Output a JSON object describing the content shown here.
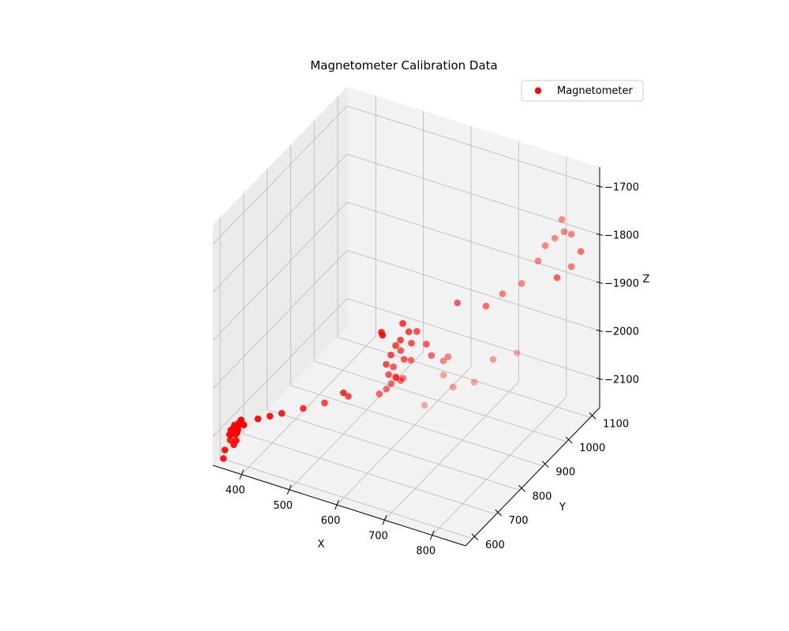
{
  "chart_data": {
    "type": "scatter3d",
    "title": "Magnetometer Calibration Data",
    "xlabel": "X",
    "ylabel": "Y",
    "zlabel": "Z",
    "xlim": [
      340,
      870
    ],
    "ylim": [
      570,
      1140
    ],
    "zlim": [
      -2160,
      -1660
    ],
    "xticks": [
      400,
      500,
      600,
      700,
      800
    ],
    "yticks": [
      600,
      700,
      800,
      900,
      1000,
      1100
    ],
    "zticks": [
      -2100,
      -2000,
      -1900,
      -1800,
      -1700
    ],
    "xtick_labels": [
      "400",
      "500",
      "600",
      "700",
      "800"
    ],
    "ytick_labels": [
      "600",
      "700",
      "800",
      "900",
      "1000",
      "1100"
    ],
    "ztick_labels": [
      "−2100",
      "−2000",
      "−1900",
      "−1800",
      "−1700"
    ],
    "grid": true,
    "legend": {
      "position": "top-right",
      "entries": [
        "Magnetometer"
      ]
    },
    "series": [
      {
        "name": "Magnetometer",
        "color": "#ff0000",
        "points": [
          [
            350,
            620,
            -2118
          ],
          [
            352,
            630,
            -2110
          ],
          [
            355,
            615,
            -2105
          ],
          [
            356,
            640,
            -2122
          ],
          [
            358,
            625,
            -2098
          ],
          [
            360,
            635,
            -2112
          ],
          [
            361,
            610,
            -2108
          ],
          [
            362,
            645,
            -2101
          ],
          [
            364,
            620,
            -2126
          ],
          [
            365,
            630,
            -2094
          ],
          [
            353,
            650,
            -2115
          ],
          [
            357,
            655,
            -2103
          ],
          [
            359,
            605,
            -2119
          ],
          [
            363,
            612,
            -2131
          ],
          [
            366,
            648,
            -2107
          ],
          [
            354,
            638,
            -2125
          ],
          [
            350,
            600,
            -2140
          ],
          [
            352,
            590,
            -2152
          ],
          [
            390,
            660,
            -2093
          ],
          [
            410,
            670,
            -2086
          ],
          [
            430,
            680,
            -2079
          ],
          [
            470,
            690,
            -2061
          ],
          [
            510,
            700,
            -2042
          ],
          [
            540,
            740,
            -2039
          ],
          [
            520,
            760,
            -2048
          ],
          [
            600,
            750,
            -2020
          ],
          [
            610,
            760,
            -2012
          ],
          [
            615,
            770,
            -2004
          ],
          [
            620,
            780,
            -1995
          ],
          [
            600,
            790,
            -2000
          ],
          [
            590,
            800,
            -1987
          ],
          [
            595,
            810,
            -1971
          ],
          [
            610,
            790,
            -1981
          ],
          [
            625,
            805,
            -1968
          ],
          [
            630,
            780,
            -1998
          ],
          [
            640,
            770,
            -1985
          ],
          [
            630,
            760,
            -1980
          ],
          [
            600,
            820,
            -1955
          ],
          [
            605,
            830,
            -1947
          ],
          [
            618,
            805,
            -1952
          ],
          [
            628,
            830,
            -1946
          ],
          [
            642,
            800,
            -1962
          ],
          [
            615,
            845,
            -1934
          ],
          [
            600,
            850,
            -1924
          ],
          [
            632,
            845,
            -1928
          ],
          [
            560,
            840,
            -1950
          ],
          [
            555,
            855,
            -1965
          ],
          [
            652,
            845,
            -1948
          ],
          [
            665,
            840,
            -1965
          ],
          [
            700,
            820,
            -1955
          ],
          [
            705,
            830,
            -1950
          ],
          [
            720,
            780,
            -1958
          ],
          [
            700,
            740,
            -2007
          ],
          [
            730,
            800,
            -1990
          ],
          [
            760,
            830,
            -1985
          ],
          [
            780,
            870,
            -1952
          ],
          [
            820,
            890,
            -1936
          ],
          [
            690,
            900,
            -1878
          ],
          [
            740,
            920,
            -1879
          ],
          [
            770,
            930,
            -1849
          ],
          [
            800,
            950,
            -1828
          ],
          [
            820,
            980,
            -1790
          ],
          [
            830,
            990,
            -1760
          ],
          [
            845,
            1000,
            -1745
          ],
          [
            855,
            1010,
            -1708
          ],
          [
            860,
            1040,
            -1752
          ],
          [
            850,
            1030,
            -1745
          ],
          [
            855,
            1050,
            -1826
          ],
          [
            820,
            1060,
            -1865
          ],
          [
            860,
            1080,
            -1808
          ]
        ]
      }
    ]
  }
}
